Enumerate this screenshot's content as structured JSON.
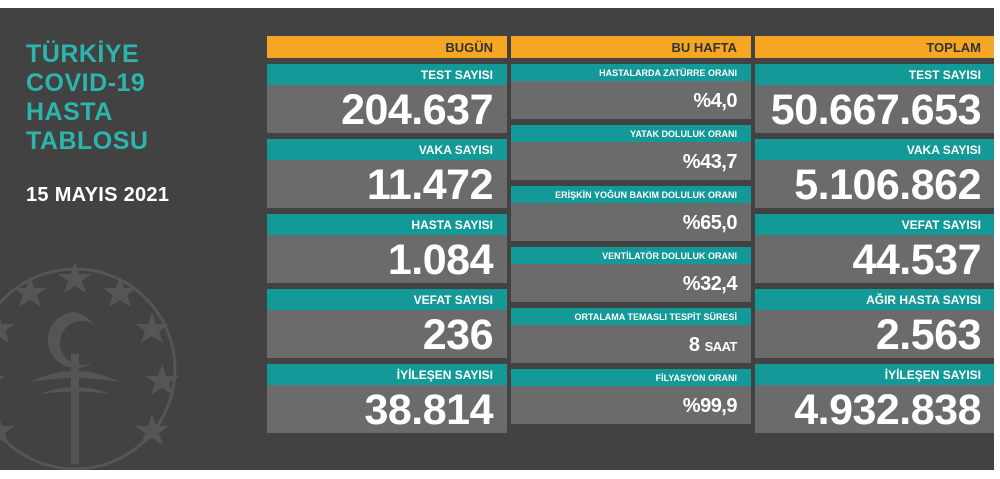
{
  "title_lines": [
    "TÜRKİYE",
    "COVID-19",
    "HASTA",
    "TABLOSU"
  ],
  "date": "15 MAYIS 2021",
  "emblem": "ministry-of-health-emblem",
  "colors": {
    "background": "#424242",
    "header": "#f5a623",
    "label": "#139a98",
    "value": "#6b6b6b",
    "title": "#2bb5ad"
  },
  "bugun": {
    "header": "BUGÜN",
    "items": [
      {
        "label": "TEST SAYISI",
        "value": "204.637"
      },
      {
        "label": "VAKA SAYISI",
        "value": "11.472"
      },
      {
        "label": "HASTA SAYISI",
        "value": "1.084"
      },
      {
        "label": "VEFAT SAYISI",
        "value": "236"
      },
      {
        "label": "İYİLEŞEN SAYISI",
        "value": "38.814"
      }
    ]
  },
  "bu_hafta": {
    "header": "BU HAFTA",
    "items": [
      {
        "label": "HASTALARDA ZATÜRRE ORANI",
        "value": "%4,0"
      },
      {
        "label": "YATAK DOLULUK ORANI",
        "value": "%43,7"
      },
      {
        "label": "ERİŞKİN YOĞUN BAKIM DOLULUK ORANI",
        "value": "%65,0"
      },
      {
        "label": "VENTİLATÖR DOLULUK ORANI",
        "value": "%32,4"
      },
      {
        "label": "ORTALAMA TEMASLI TESPİT SÜRESİ",
        "value": "8",
        "unit": "SAAT"
      },
      {
        "label": "FİLYASYON ORANI",
        "value": "%99,9"
      }
    ]
  },
  "toplam": {
    "header": "TOPLAM",
    "items": [
      {
        "label": "TEST SAYISI",
        "value": "50.667.653"
      },
      {
        "label": "VAKA SAYISI",
        "value": "5.106.862"
      },
      {
        "label": "VEFAT SAYISI",
        "value": "44.537"
      },
      {
        "label": "AĞIR HASTA SAYISI",
        "value": "2.563"
      },
      {
        "label": "İYİLEŞEN SAYISI",
        "value": "4.932.838"
      }
    ]
  }
}
